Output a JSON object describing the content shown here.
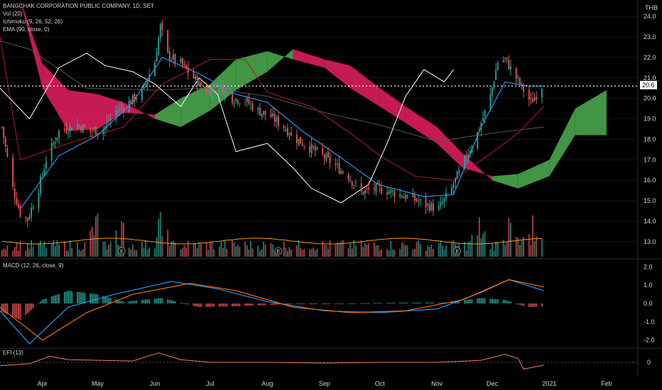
{
  "chart_title": "BANGCHAK CORPORATION PUBLIC COMPANY, 1D, SET",
  "currency": "THB",
  "indicators": {
    "vol": "Vol (20)",
    "ichimoku": "Ichimoku (9, 26, 52, 26)",
    "ema": "EMA (90, close, 0)",
    "macd": "MACD (12, 26, close, 9)",
    "efi": "EFI (13)"
  },
  "last_price_label": "20.6",
  "earnings_marker": "E",
  "colors": {
    "background": "#000000",
    "up": "#26a69a",
    "down": "#ef5350",
    "cloud_bull": "#4caf50",
    "cloud_bear": "#e91e63",
    "tenkan": "#2196f3",
    "kijun": "#b71c1c",
    "chikou": "#ffffff",
    "macd_line": "#2196f3",
    "signal_line": "#ff6d00",
    "efi_line": "#f57c5c"
  },
  "chart_data": [
    {
      "type": "candlestick",
      "title": "BANGCHAK CORPORATION PUBLIC COMPANY, 1D, SET",
      "ylabel": "THB",
      "ylim": [
        12.2,
        24.8
      ],
      "y_ticks": [
        13.0,
        14.0,
        15.0,
        16.0,
        17.0,
        18.0,
        19.0,
        20.0,
        21.0,
        22.0,
        23.0,
        24.0
      ],
      "x_ticks": [
        "Apr",
        "May",
        "Jun",
        "Jul",
        "Aug",
        "Sep",
        "Oct",
        "Nov",
        "Dec",
        "2021",
        "Feb"
      ],
      "x_range": [
        "2020-03-09",
        "2021-02-18"
      ],
      "close_anchors": [
        [
          "2020-03-10",
          18.6
        ],
        [
          "2020-03-16",
          15.6
        ],
        [
          "2020-03-20",
          14.4
        ],
        [
          "2020-03-24",
          14.1
        ],
        [
          "2020-03-30",
          15.6
        ],
        [
          "2020-04-03",
          17.0
        ],
        [
          "2020-04-10",
          18.4
        ],
        [
          "2020-04-20",
          18.7
        ],
        [
          "2020-04-27",
          18.4
        ],
        [
          "2020-05-04",
          18.5
        ],
        [
          "2020-05-11",
          19.4
        ],
        [
          "2020-05-18",
          19.8
        ],
        [
          "2020-05-25",
          20.3
        ],
        [
          "2020-06-01",
          21.8
        ],
        [
          "2020-06-04",
          23.5
        ],
        [
          "2020-06-08",
          22.1
        ],
        [
          "2020-06-15",
          21.7
        ],
        [
          "2020-06-22",
          21.0
        ],
        [
          "2020-06-29",
          20.3
        ],
        [
          "2020-07-06",
          20.6
        ],
        [
          "2020-07-13",
          20.0
        ],
        [
          "2020-07-20",
          19.9
        ],
        [
          "2020-07-27",
          19.4
        ],
        [
          "2020-08-03",
          19.1
        ],
        [
          "2020-08-10",
          18.6
        ],
        [
          "2020-08-17",
          18.0
        ],
        [
          "2020-08-24",
          17.6
        ],
        [
          "2020-08-31",
          17.2
        ],
        [
          "2020-09-07",
          16.7
        ],
        [
          "2020-09-14",
          16.2
        ],
        [
          "2020-09-21",
          15.4
        ],
        [
          "2020-09-28",
          15.6
        ],
        [
          "2020-10-05",
          15.5
        ],
        [
          "2020-10-12",
          15.3
        ],
        [
          "2020-10-19",
          15.1
        ],
        [
          "2020-10-26",
          14.8
        ],
        [
          "2020-11-02",
          14.6
        ],
        [
          "2020-11-09",
          15.6
        ],
        [
          "2020-11-16",
          17.0
        ],
        [
          "2020-11-23",
          18.3
        ],
        [
          "2020-11-30",
          20.1
        ],
        [
          "2020-12-04",
          21.8
        ],
        [
          "2020-12-08",
          21.9
        ],
        [
          "2020-12-14",
          21.0
        ],
        [
          "2020-12-18",
          20.4
        ],
        [
          "2020-12-22",
          19.8
        ],
        [
          "2020-12-28",
          20.6
        ]
      ],
      "cloud": {
        "dates": [
          "2020-03-20",
          "2020-04-01",
          "2020-04-15",
          "2020-05-01",
          "2020-05-15",
          "2020-06-01",
          "2020-06-15",
          "2020-07-01",
          "2020-07-15",
          "2020-08-01",
          "2020-08-15",
          "2020-09-01",
          "2020-09-15",
          "2020-10-01",
          "2020-10-15",
          "2020-11-01",
          "2020-11-15",
          "2020-12-01",
          "2020-12-15",
          "2021-01-01",
          "2021-01-15",
          "2021-02-01"
        ],
        "span_a": [
          24.8,
          20.5,
          18.4,
          18.5,
          19.3,
          19.2,
          20.0,
          20.7,
          21.9,
          22.3,
          21.9,
          21.5,
          20.5,
          19.6,
          18.8,
          17.8,
          16.6,
          16.2,
          16.3,
          17.0,
          19.5,
          20.4
        ],
        "span_b": [
          24.8,
          21.7,
          20.4,
          20.2,
          19.8,
          19.0,
          18.6,
          19.4,
          20.4,
          21.3,
          22.4,
          21.9,
          21.6,
          20.5,
          19.6,
          18.6,
          17.3,
          16.0,
          15.6,
          16.2,
          18.2,
          18.2
        ]
      },
      "tenkan": [
        [
          "2020-03-20",
          14.6
        ],
        [
          "2020-04-10",
          17.2
        ],
        [
          "2020-05-01",
          18.2
        ],
        [
          "2020-05-20",
          19.8
        ],
        [
          "2020-06-05",
          22.0
        ],
        [
          "2020-06-25",
          21.2
        ],
        [
          "2020-07-15",
          20.2
        ],
        [
          "2020-08-01",
          19.8
        ],
        [
          "2020-08-20",
          18.4
        ],
        [
          "2020-09-10",
          17.1
        ],
        [
          "2020-09-30",
          15.8
        ],
        [
          "2020-10-25",
          15.2
        ],
        [
          "2020-11-10",
          15.3
        ],
        [
          "2020-11-25",
          18.6
        ],
        [
          "2020-12-08",
          20.8
        ],
        [
          "2020-12-20",
          20.6
        ],
        [
          "2020-12-29",
          20.6
        ]
      ],
      "kijun": [
        [
          "2020-03-09",
          23.0
        ],
        [
          "2020-03-20",
          17.0
        ],
        [
          "2020-04-15",
          17.8
        ],
        [
          "2020-05-15",
          18.6
        ],
        [
          "2020-06-05",
          20.7
        ],
        [
          "2020-07-01",
          21.9
        ],
        [
          "2020-07-20",
          21.9
        ],
        [
          "2020-08-01",
          20.3
        ],
        [
          "2020-08-25",
          19.6
        ],
        [
          "2020-09-15",
          18.3
        ],
        [
          "2020-10-01",
          17.2
        ],
        [
          "2020-10-20",
          16.2
        ],
        [
          "2020-11-10",
          16.0
        ],
        [
          "2020-11-30",
          17.3
        ],
        [
          "2020-12-15",
          18.3
        ],
        [
          "2020-12-29",
          19.6
        ]
      ],
      "chikou": [
        [
          "2020-03-09",
          20.5
        ],
        [
          "2020-03-25",
          19.0
        ],
        [
          "2020-04-10",
          21.5
        ],
        [
          "2020-04-25",
          22.2
        ],
        [
          "2020-05-05",
          21.6
        ],
        [
          "2020-05-20",
          21.3
        ],
        [
          "2020-06-01",
          20.7
        ],
        [
          "2020-06-15",
          19.6
        ],
        [
          "2020-06-25",
          21.0
        ],
        [
          "2020-07-05",
          20.2
        ],
        [
          "2020-07-15",
          17.4
        ],
        [
          "2020-08-01",
          17.8
        ],
        [
          "2020-08-15",
          16.6
        ],
        [
          "2020-08-25",
          15.6
        ],
        [
          "2020-09-10",
          14.9
        ],
        [
          "2020-09-25",
          15.8
        ],
        [
          "2020-10-05",
          17.8
        ],
        [
          "2020-10-15",
          20.1
        ],
        [
          "2020-10-25",
          21.4
        ],
        [
          "2020-11-05",
          20.8
        ],
        [
          "2020-11-10",
          21.4
        ]
      ],
      "ema": [
        [
          "2020-03-09",
          22.8
        ],
        [
          "2020-03-25",
          22.4
        ],
        [
          "2020-04-25",
          20.5
        ],
        [
          "2020-06-01",
          20.4
        ],
        [
          "2020-07-01",
          20.5
        ],
        [
          "2020-08-01",
          20.1
        ],
        [
          "2020-09-01",
          19.3
        ],
        [
          "2020-10-01",
          18.7
        ],
        [
          "2020-11-01",
          17.9
        ],
        [
          "2020-12-01",
          18.3
        ],
        [
          "2020-12-29",
          18.6
        ]
      ],
      "volume": {
        "peaks": [
          "2020-04-30",
          "2020-05-13",
          "2020-06-04",
          "2020-11-24",
          "2020-12-10",
          "2020-12-23"
        ],
        "avg_line": "orange"
      },
      "earnings_dates": [
        "2020-05-14",
        "2020-08-07",
        "2020-11-12"
      ],
      "last_price": 20.6
    },
    {
      "type": "histogram+line",
      "title": "MACD (12, 26, close, 9)",
      "ylim": [
        -2.4,
        2.4
      ],
      "y_ticks": [
        2.0,
        1.0,
        0.0,
        -1.0,
        -2.0
      ],
      "hist": [
        [
          "2020-03-09",
          -0.4
        ],
        [
          "2020-03-20",
          -0.9
        ],
        [
          "2020-04-01",
          0.2
        ],
        [
          "2020-04-15",
          0.7
        ],
        [
          "2020-05-01",
          0.5
        ],
        [
          "2020-05-15",
          0.1
        ],
        [
          "2020-06-05",
          0.3
        ],
        [
          "2020-06-25",
          -0.2
        ],
        [
          "2020-07-15",
          -0.15
        ],
        [
          "2020-08-10",
          -0.05
        ],
        [
          "2020-09-10",
          0.0
        ],
        [
          "2020-10-10",
          0.05
        ],
        [
          "2020-11-05",
          0.05
        ],
        [
          "2020-11-25",
          0.3
        ],
        [
          "2020-12-08",
          0.2
        ],
        [
          "2020-12-20",
          -0.2
        ],
        [
          "2020-12-29",
          -0.15
        ]
      ],
      "macd_line": [
        [
          "2020-03-09",
          -0.4
        ],
        [
          "2020-03-25",
          -2.2
        ],
        [
          "2020-04-15",
          -0.2
        ],
        [
          "2020-05-10",
          0.5
        ],
        [
          "2020-06-10",
          1.2
        ],
        [
          "2020-07-05",
          0.8
        ],
        [
          "2020-08-01",
          0.1
        ],
        [
          "2020-09-01",
          -0.4
        ],
        [
          "2020-10-01",
          -0.5
        ],
        [
          "2020-11-01",
          -0.3
        ],
        [
          "2020-11-25",
          0.6
        ],
        [
          "2020-12-10",
          1.3
        ],
        [
          "2020-12-29",
          0.7
        ]
      ],
      "signal_line": [
        [
          "2020-03-09",
          -0.2
        ],
        [
          "2020-04-01",
          -2.0
        ],
        [
          "2020-04-25",
          -0.5
        ],
        [
          "2020-05-20",
          0.5
        ],
        [
          "2020-06-20",
          1.1
        ],
        [
          "2020-07-15",
          0.7
        ],
        [
          "2020-08-15",
          -0.2
        ],
        [
          "2020-09-15",
          -0.5
        ],
        [
          "2020-10-15",
          -0.4
        ],
        [
          "2020-11-15",
          0.2
        ],
        [
          "2020-12-10",
          1.3
        ],
        [
          "2020-12-29",
          0.9
        ]
      ]
    },
    {
      "type": "line",
      "title": "EFI (13)",
      "y_ticks": [
        0
      ],
      "ylim": [
        -1,
        1
      ],
      "line": [
        [
          "2020-03-09",
          -0.25
        ],
        [
          "2020-03-25",
          -0.1
        ],
        [
          "2020-04-05",
          0.45
        ],
        [
          "2020-04-15",
          0.2
        ],
        [
          "2020-05-01",
          0.15
        ],
        [
          "2020-05-20",
          0.1
        ],
        [
          "2020-06-03",
          0.7
        ],
        [
          "2020-06-15",
          0.2
        ],
        [
          "2020-07-01",
          0.0
        ],
        [
          "2020-08-01",
          0.0
        ],
        [
          "2020-09-01",
          -0.05
        ],
        [
          "2020-10-01",
          0.0
        ],
        [
          "2020-11-01",
          0.0
        ],
        [
          "2020-11-25",
          0.15
        ],
        [
          "2020-12-08",
          0.6
        ],
        [
          "2020-12-15",
          0.3
        ],
        [
          "2020-12-18",
          -0.5
        ],
        [
          "2020-12-29",
          -0.2
        ]
      ]
    }
  ]
}
